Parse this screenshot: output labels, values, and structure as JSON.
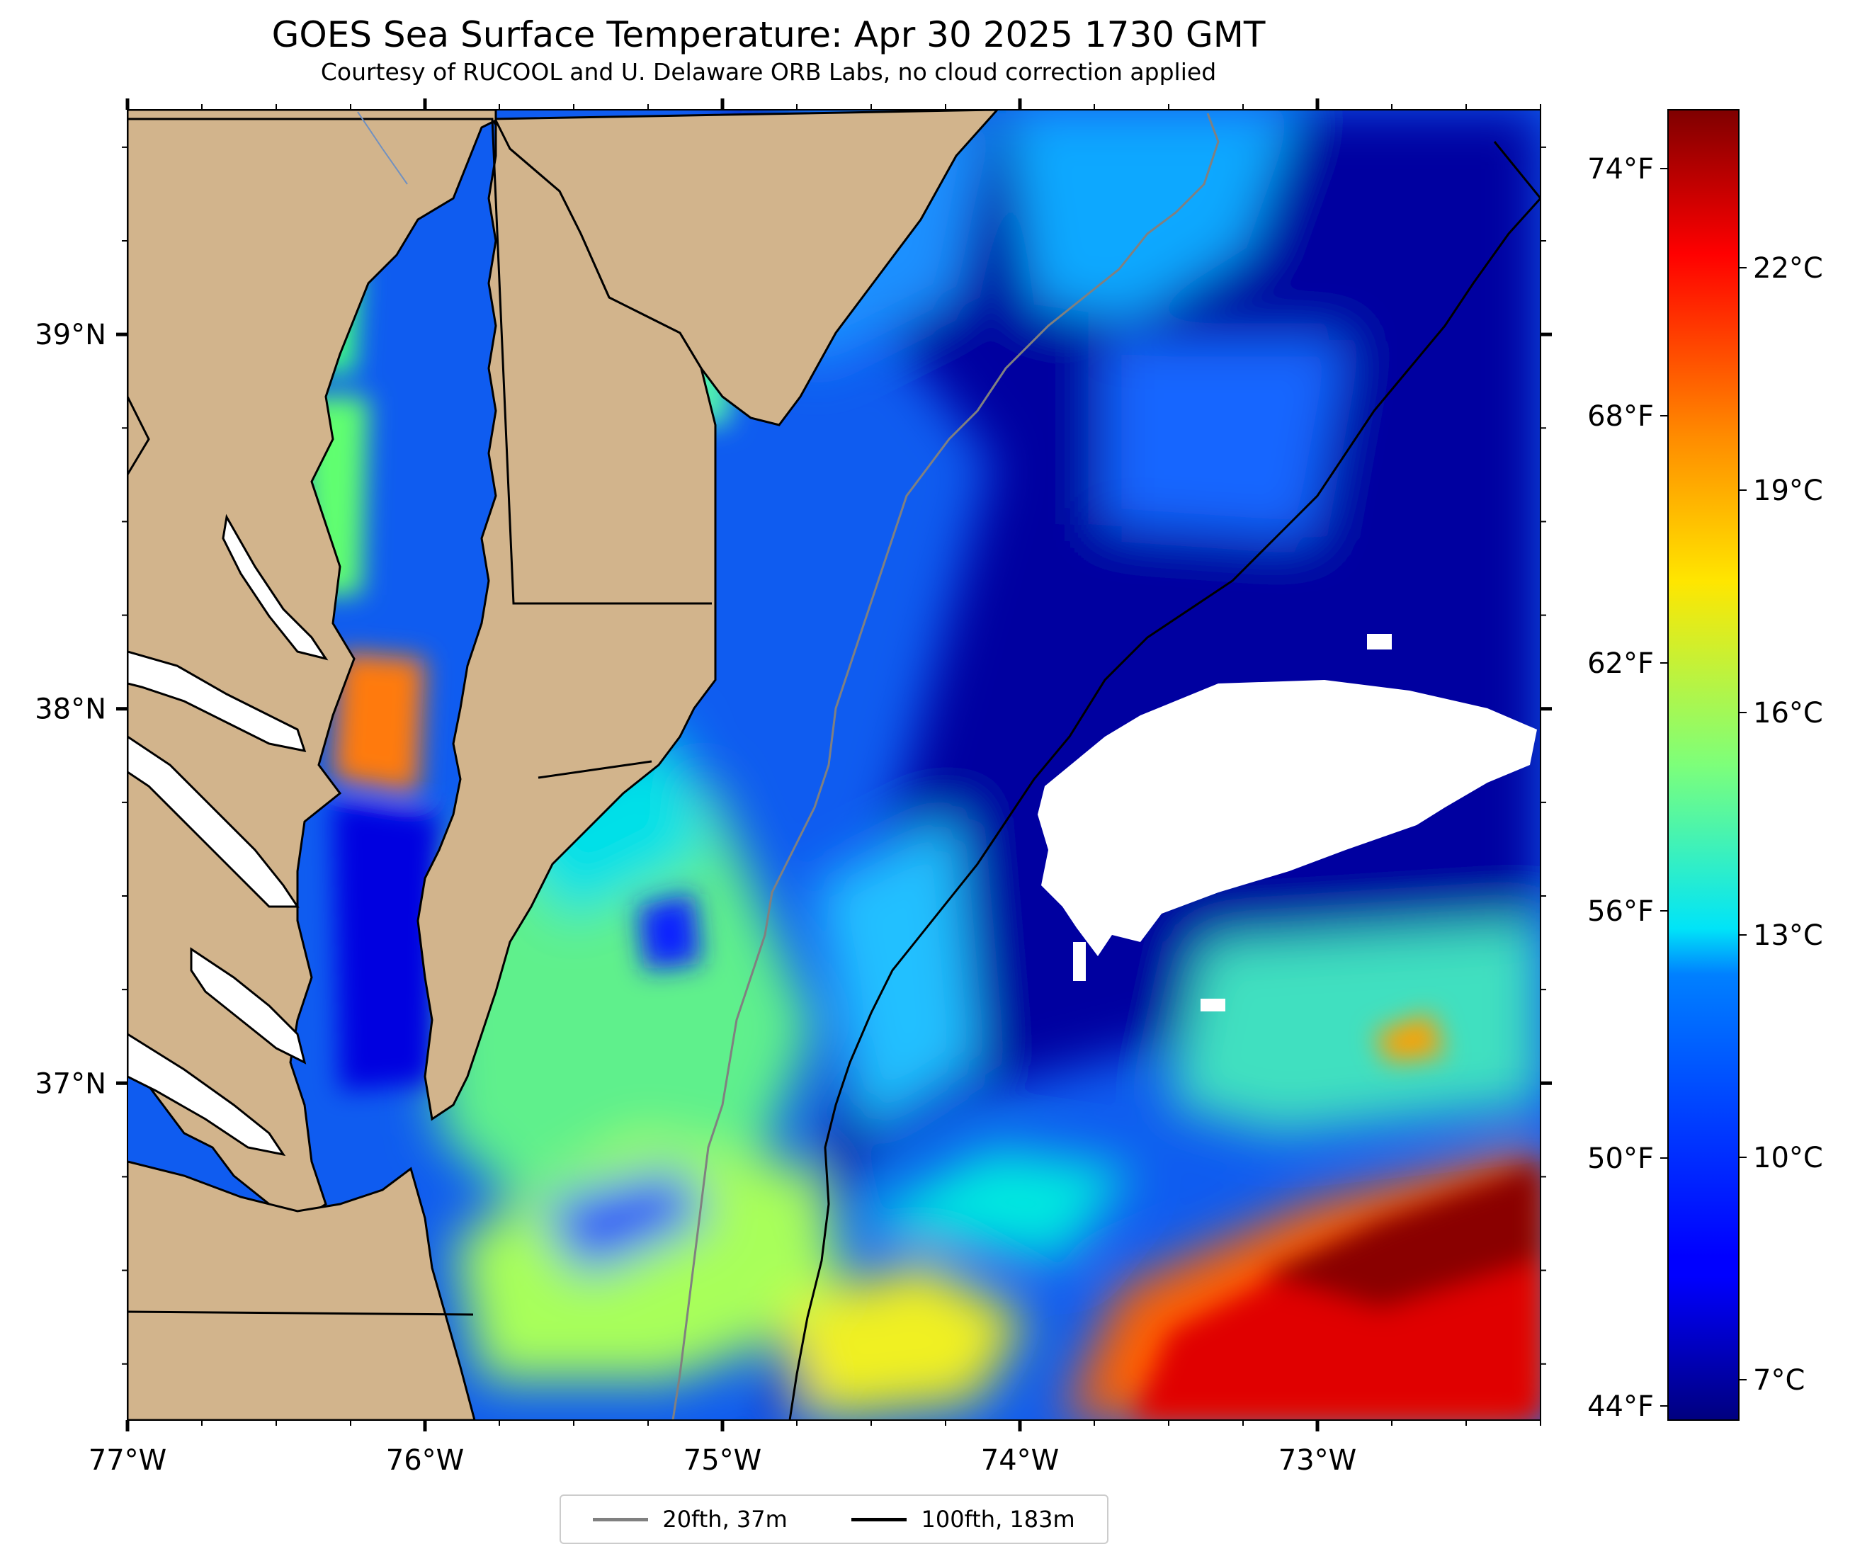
{
  "title": "GOES Sea Surface Temperature: Apr 30 2025 1730 GMT",
  "subtitle": "Courtesy of RUCOOL and U. Delaware ORB Labs, no cloud correction applied",
  "map": {
    "lon_range": [
      -77.0,
      -72.25
    ],
    "lat_range": [
      36.1,
      39.6
    ],
    "x_ticks": [
      {
        "label": "77°W",
        "value": -77
      },
      {
        "label": "76°W",
        "value": -76
      },
      {
        "label": "75°W",
        "value": -75
      },
      {
        "label": "74°W",
        "value": -74
      },
      {
        "label": "73°W",
        "value": -73
      }
    ],
    "y_ticks_left": [
      {
        "label": "39°N",
        "value": 39
      },
      {
        "label": "38°N",
        "value": 38
      },
      {
        "label": "37°N",
        "value": 37
      }
    ],
    "colors": {
      "land": "#d2b48c",
      "no_data": "#ffffff",
      "isobath_20fth": "#808080",
      "isobath_100fth": "#000000"
    }
  },
  "colorbar": {
    "colormap": "jet",
    "celsius_ticks": [
      "22°C",
      "19°C",
      "16°C",
      "13°C",
      "10°C",
      "7°C"
    ],
    "fahrenheit_ticks": [
      "74°F",
      "68°F",
      "62°F",
      "56°F",
      "50°F",
      "44°F"
    ]
  },
  "legend": {
    "items": [
      {
        "label": "20fth, 37m",
        "color": "#808080"
      },
      {
        "label": "100fth, 183m",
        "color": "#000000"
      }
    ]
  }
}
